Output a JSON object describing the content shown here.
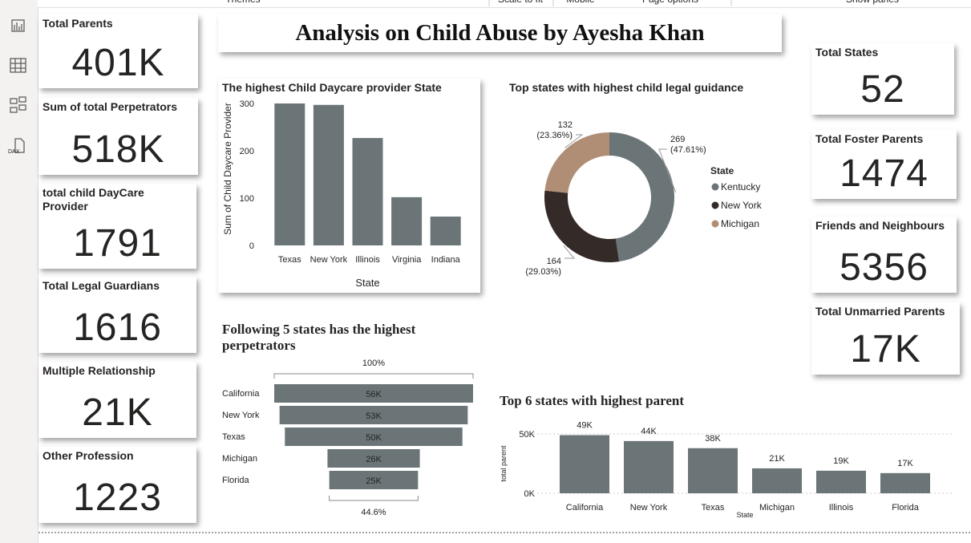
{
  "toolbar": [
    "Themes",
    "Scale to fit",
    "Mobile",
    "Page options",
    "Show panes"
  ],
  "header": {
    "title": "Analysis on Child Abuse by Ayesha Khan"
  },
  "cards": [
    {
      "label": "Total Parents",
      "value": "401K"
    },
    {
      "label": "Sum of total Perpetrators",
      "value": "518K"
    },
    {
      "label": "total child DayCare Provider",
      "value": "1791"
    },
    {
      "label": "Total Legal Guardians",
      "value": "1616"
    },
    {
      "label": "Multiple Relationship",
      "value": "21K"
    },
    {
      "label": "Other Profession",
      "value": "1223"
    },
    {
      "label": "Total States",
      "value": "52"
    },
    {
      "label": "Total Foster Parents",
      "value": "1474"
    },
    {
      "label": "Friends and Neighbours",
      "value": "5356"
    },
    {
      "label": "Total Unmarried Parents",
      "value": "17K"
    }
  ],
  "chart_data": [
    {
      "type": "bar",
      "title": "The highest Child Daycare provider State",
      "x_label": "State",
      "y_label": "Sum of Child Daycare Provider",
      "categories": [
        "Texas",
        "New York",
        "Illinois",
        "Virginia",
        "Indiana"
      ],
      "values": [
        300,
        297,
        227,
        102,
        61
      ],
      "color": "#6b7578",
      "ylim": [
        0,
        300
      ],
      "yticks": [
        0,
        100,
        200,
        300
      ]
    },
    {
      "type": "donut",
      "title": "Top states with highest child legal guidance",
      "legend_title": "State",
      "categories": [
        "Kentucky",
        "New York",
        "Michigan"
      ],
      "values": [
        269,
        164,
        132
      ],
      "percent_labels": [
        "(47.61%)",
        "(29.03%)",
        "(23.36%)"
      ],
      "colors": [
        "#6b7578",
        "#342a28",
        "#b08e76"
      ]
    },
    {
      "type": "funnel",
      "title": "Following 5 states has the highest perpetrators",
      "categories": [
        "California",
        "New York",
        "Texas",
        "Michigan",
        "Florida"
      ],
      "values": [
        56000,
        53000,
        50000,
        26000,
        25000
      ],
      "value_labels": [
        "56K",
        "53K",
        "50K",
        "26K",
        "25K"
      ],
      "top_label": "100%",
      "bottom_label": "44.6%",
      "color": "#6b7578"
    },
    {
      "type": "bar",
      "title": "Top 6 states with highest parent",
      "x_label": "State",
      "y_label": "total parent",
      "categories": [
        "California",
        "New York",
        "Texas",
        "Michigan",
        "Illinois",
        "Florida"
      ],
      "values": [
        49000,
        44000,
        38000,
        21000,
        19000,
        17000
      ],
      "value_labels": [
        "49K",
        "44K",
        "38K",
        "21K",
        "19K",
        "17K"
      ],
      "color": "#6b7578",
      "ylim": [
        0,
        50000
      ],
      "yticks": [
        {
          "value": 0,
          "label": "0K"
        },
        {
          "value": 50000,
          "label": "50K"
        }
      ],
      "grid": true
    }
  ]
}
